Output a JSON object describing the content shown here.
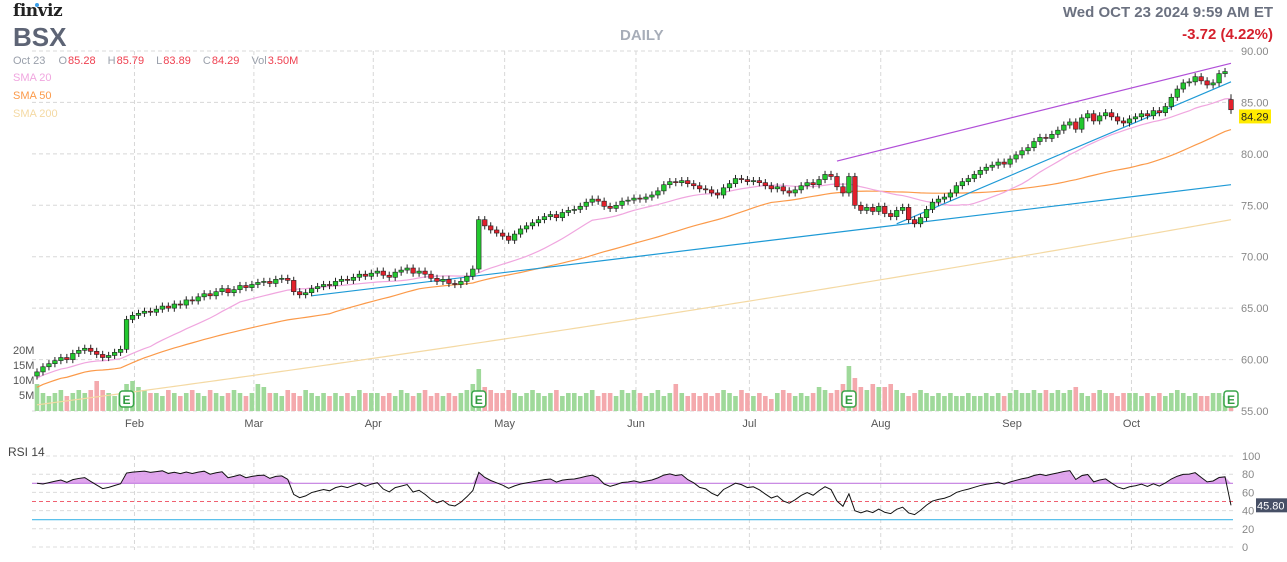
{
  "header": {
    "logo": "finviz",
    "ticker": "BSX",
    "timeframe": "DAILY",
    "datetime": "Wed OCT 23 2024 9:59 AM ET",
    "change": "-3.72 (4.22%)",
    "ohlc": {
      "date": "Oct 23",
      "o_key": "O",
      "open": "85.28",
      "h_key": "H",
      "high": "85.79",
      "l_key": "L",
      "low": "83.89",
      "c_key": "C",
      "close": "84.29",
      "vol_key": "Vol",
      "volume": "3.50M"
    },
    "legend": [
      {
        "label": "SMA 20",
        "color": "#f0a6df"
      },
      {
        "label": "SMA 50",
        "color": "#fb9a4a"
      },
      {
        "label": "SMA 200",
        "color": "#f4d9a3"
      }
    ]
  },
  "colors": {
    "up": "#22c82e",
    "down": "#e3202c",
    "vol_up": "#9fd99a",
    "vol_down": "#f4a9ad",
    "trend_purple": "#b14fd8",
    "trend_blue": "#1e9ad6",
    "last_price_bg": "#ffeb00",
    "rsi_value_bg": "#475066"
  },
  "chart_data": {
    "type": "candlestick",
    "title": "BSX DAILY",
    "ylim": [
      55,
      90
    ],
    "y_ticks": [
      "90.00",
      "85.00",
      "80.00",
      "75.00",
      "70.00",
      "65.00",
      "60.00",
      "55.00"
    ],
    "month_labels": [
      {
        "label": "Feb",
        "index": 17
      },
      {
        "label": "Mar",
        "index": 37
      },
      {
        "label": "Apr",
        "index": 57
      },
      {
        "label": "May",
        "index": 79
      },
      {
        "label": "Jun",
        "index": 101
      },
      {
        "label": "Jul",
        "index": 120
      },
      {
        "label": "Aug",
        "index": 142
      },
      {
        "label": "Sep",
        "index": 164
      },
      {
        "label": "Oct",
        "index": 184
      }
    ],
    "close": [
      58.8,
      59.3,
      59.6,
      59.9,
      60.2,
      60.0,
      60.6,
      60.9,
      61.1,
      60.8,
      60.5,
      60.2,
      60.4,
      60.7,
      61.0,
      63.9,
      64.3,
      64.5,
      64.7,
      64.6,
      64.9,
      65.2,
      65.0,
      65.4,
      65.3,
      65.8,
      65.7,
      66.1,
      66.4,
      66.2,
      66.6,
      66.9,
      66.5,
      66.8,
      67.2,
      67.0,
      67.3,
      67.5,
      67.6,
      67.4,
      67.8,
      67.9,
      67.7,
      66.6,
      66.3,
      66.5,
      66.9,
      67.1,
      67.3,
      67.2,
      67.6,
      67.8,
      67.7,
      68.0,
      68.3,
      68.1,
      68.4,
      68.6,
      68.2,
      68.0,
      68.5,
      68.7,
      68.9,
      68.4,
      68.6,
      68.3,
      67.9,
      67.6,
      67.8,
      67.4,
      67.3,
      67.6,
      68.1,
      68.8,
      73.6,
      73.0,
      72.6,
      72.3,
      72.0,
      71.6,
      72.2,
      72.7,
      73.0,
      73.3,
      73.6,
      73.9,
      74.1,
      73.8,
      74.3,
      74.5,
      74.6,
      74.9,
      75.3,
      75.6,
      75.4,
      74.9,
      74.7,
      75.0,
      75.4,
      75.5,
      75.7,
      75.6,
      75.8,
      76.0,
      76.4,
      77.0,
      77.3,
      77.2,
      77.4,
      77.1,
      76.9,
      76.6,
      76.5,
      76.2,
      76.0,
      76.7,
      77.1,
      77.6,
      77.5,
      77.3,
      77.4,
      77.2,
      76.9,
      76.6,
      76.8,
      76.4,
      76.2,
      76.5,
      76.9,
      77.2,
      77.0,
      77.5,
      78.0,
      77.8,
      76.8,
      76.2,
      77.8,
      75.0,
      74.5,
      74.8,
      74.4,
      74.9,
      74.2,
      73.9,
      74.5,
      74.8,
      73.6,
      73.2,
      73.8,
      74.6,
      75.3,
      75.6,
      75.8,
      76.2,
      76.9,
      77.3,
      77.6,
      78.0,
      78.4,
      78.7,
      78.9,
      79.2,
      79.0,
      79.5,
      79.9,
      80.3,
      80.6,
      81.2,
      81.6,
      81.5,
      81.9,
      82.3,
      82.8,
      83.1,
      82.4,
      83.5,
      83.9,
      83.2,
      83.7,
      84.0,
      83.6,
      83.2,
      83.0,
      83.4,
      83.6,
      83.9,
      83.7,
      84.2,
      84.0,
      84.6,
      85.5,
      86.3,
      86.9,
      87.0,
      87.5,
      87.1,
      86.7,
      86.9,
      87.8,
      88.0,
      84.29
    ],
    "last_bar": {
      "open": 85.28,
      "high": 85.79,
      "low": 83.89,
      "close": 84.29
    },
    "volume_millions": [
      9,
      6,
      5,
      6,
      7,
      5,
      6,
      7,
      6,
      7,
      10,
      7,
      6,
      5,
      6,
      9,
      10,
      8,
      7,
      6,
      6,
      5,
      7,
      6,
      5,
      6,
      7,
      6,
      5,
      7,
      6,
      5,
      6,
      7,
      6,
      5,
      6,
      9,
      8,
      6,
      6,
      5,
      7,
      6,
      5,
      7,
      6,
      5,
      6,
      5,
      6,
      5,
      6,
      5,
      7,
      6,
      6,
      6,
      5,
      6,
      5,
      7,
      6,
      5,
      6,
      7,
      5,
      6,
      5,
      6,
      5,
      6,
      7,
      9,
      14,
      8,
      7,
      6,
      6,
      7,
      6,
      5,
      6,
      7,
      6,
      5,
      6,
      7,
      5,
      6,
      6,
      5,
      6,
      7,
      5,
      6,
      6,
      5,
      7,
      6,
      7,
      6,
      5,
      6,
      7,
      5,
      6,
      9,
      6,
      5,
      6,
      5,
      6,
      5,
      6,
      7,
      6,
      5,
      7,
      6,
      5,
      6,
      5,
      4,
      6,
      7,
      6,
      5,
      6,
      5,
      6,
      8,
      7,
      6,
      7,
      9,
      15,
      11,
      8,
      7,
      9,
      8,
      8,
      9,
      7,
      6,
      5,
      6,
      7,
      6,
      5,
      6,
      5,
      6,
      5,
      5,
      6,
      5,
      5,
      6,
      5,
      6,
      5,
      6,
      7,
      6,
      6,
      7,
      6,
      7,
      6,
      7,
      6,
      7,
      8,
      6,
      5,
      6,
      7,
      6,
      6,
      5,
      6,
      6,
      6,
      5,
      6,
      5,
      6,
      5,
      6,
      7,
      6,
      5,
      6,
      5,
      5,
      6,
      6,
      5,
      3.5
    ],
    "volume_ticks": [
      "20M",
      "15M",
      "10M",
      "5M"
    ],
    "sma200_range": [
      55.6,
      73.6
    ],
    "earnings_indices": [
      15,
      74,
      136,
      200
    ],
    "earnings_label": "E",
    "trendlines": [
      {
        "color": "purple",
        "from": [
          134,
          79.3
        ],
        "to": [
          200,
          88.8
        ]
      },
      {
        "color": "blue",
        "from": [
          46,
          66.2
        ],
        "to": [
          200,
          77.0
        ]
      },
      {
        "color": "blue",
        "from": [
          144,
          73.2
        ],
        "to": [
          200,
          87.0
        ]
      }
    ],
    "last_price_label": "84.29",
    "rsi": {
      "label": "RSI 14",
      "period": 14,
      "last_value": "45.80",
      "ticks": [
        "100",
        "80",
        "60",
        "40",
        "20",
        "0"
      ],
      "overbought": 70,
      "oversold": 30,
      "mid": 50
    }
  }
}
